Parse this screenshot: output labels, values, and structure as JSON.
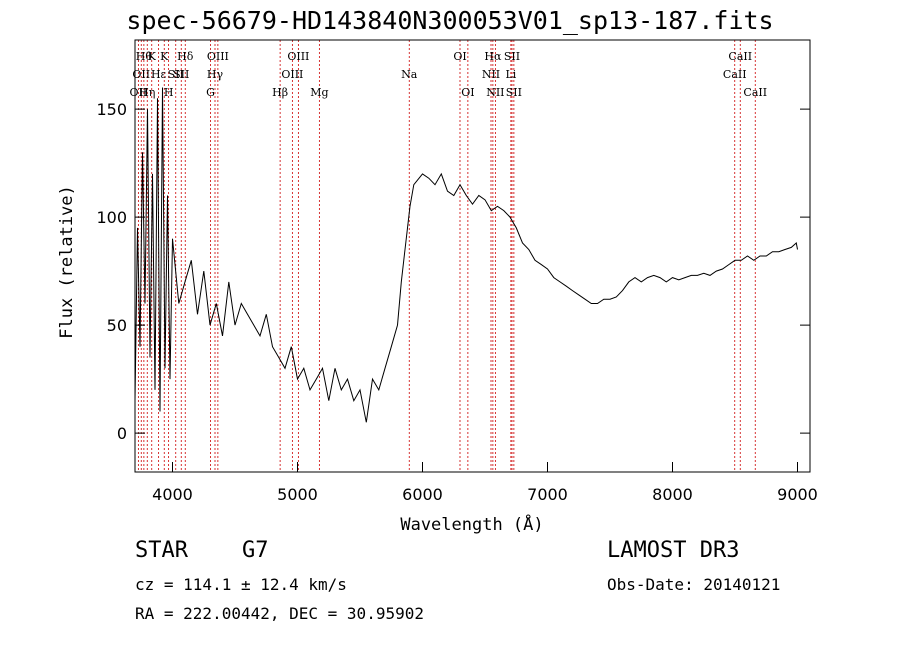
{
  "chart_data": {
    "type": "line",
    "title": "spec-56679-HD143840N300053V01_sp13-187.fits",
    "xlabel": "Wavelength (Å)",
    "ylabel": "Flux (relative)",
    "xlim": [
      3700,
      9100
    ],
    "ylim": [
      -18,
      182
    ],
    "xticks": [
      4000,
      5000,
      6000,
      7000,
      8000,
      9000
    ],
    "yticks": [
      0,
      50,
      100,
      150
    ],
    "grid": false,
    "series": [
      {
        "x": [
          3700,
          3720,
          3740,
          3760,
          3780,
          3800,
          3820,
          3840,
          3860,
          3880,
          3900,
          3920,
          3940,
          3960,
          3980,
          4000,
          4050,
          4100,
          4150,
          4200,
          4250,
          4300,
          4350,
          4400,
          4450,
          4500,
          4550,
          4600,
          4650,
          4700,
          4750,
          4800,
          4850,
          4900,
          4950,
          5000,
          5050,
          5100,
          5150,
          5200,
          5250,
          5300,
          5350,
          5400,
          5450,
          5500,
          5550,
          5600,
          5650,
          5700,
          5750,
          5800,
          5830,
          5860,
          5880,
          5900,
          5930,
          6000,
          6050,
          6100,
          6150,
          6200,
          6250,
          6300,
          6350,
          6400,
          6450,
          6500,
          6550,
          6600,
          6650,
          6700,
          6750,
          6800,
          6850,
          6900,
          6950,
          7000,
          7050,
          7100,
          7150,
          7200,
          7250,
          7300,
          7350,
          7400,
          7450,
          7500,
          7550,
          7600,
          7650,
          7700,
          7750,
          7800,
          7850,
          7900,
          7950,
          8000,
          8050,
          8100,
          8150,
          8200,
          8250,
          8300,
          8350,
          8400,
          8450,
          8500,
          8550,
          8600,
          8650,
          8700,
          8750,
          8800,
          8850,
          8900,
          8950,
          8990,
          9000
        ],
        "y": [
          15,
          95,
          40,
          130,
          60,
          150,
          35,
          120,
          20,
          155,
          10,
          160,
          30,
          110,
          25,
          90,
          60,
          70,
          80,
          55,
          75,
          50,
          60,
          45,
          70,
          50,
          60,
          55,
          50,
          45,
          55,
          40,
          35,
          30,
          40,
          25,
          30,
          20,
          25,
          30,
          15,
          30,
          20,
          25,
          15,
          20,
          5,
          25,
          20,
          30,
          40,
          50,
          70,
          85,
          95,
          105,
          115,
          120,
          118,
          115,
          120,
          112,
          110,
          115,
          110,
          106,
          110,
          108,
          103,
          105,
          103,
          100,
          95,
          88,
          85,
          80,
          78,
          76,
          72,
          70,
          68,
          66,
          64,
          62,
          60,
          60,
          62,
          62,
          63,
          66,
          70,
          72,
          70,
          72,
          73,
          72,
          70,
          72,
          71,
          72,
          73,
          73,
          74,
          73,
          75,
          76,
          78,
          80,
          80,
          82,
          80,
          82,
          82,
          84,
          84,
          85,
          86,
          88,
          85
        ]
      }
    ],
    "lines": [
      {
        "w": 3727,
        "label": "OII",
        "row": 2
      },
      {
        "w": 3750,
        "label": "OII",
        "row": 1
      },
      {
        "w": 3771,
        "label": "Hθ",
        "row": 0
      },
      {
        "w": 3798,
        "label": "Hη",
        "row": 2
      },
      {
        "w": 3834,
        "label": "K",
        "row": 0
      },
      {
        "w": 3889,
        "label": "Hε",
        "row": 1
      },
      {
        "w": 3934,
        "label": "K",
        "row": 0
      },
      {
        "w": 3969,
        "label": "H",
        "row": 2
      },
      {
        "w": 4026,
        "label": "SII",
        "row": 1
      },
      {
        "w": 4102,
        "label": "Hδ",
        "row": 0
      },
      {
        "w": 4070,
        "label": "SII",
        "row": 1
      },
      {
        "w": 4304,
        "label": "G",
        "row": 2
      },
      {
        "w": 4340,
        "label": "Hγ",
        "row": 1
      },
      {
        "w": 4363,
        "label": "OIII",
        "row": 0
      },
      {
        "w": 4861,
        "label": "Hβ",
        "row": 2
      },
      {
        "w": 4959,
        "label": "OIII",
        "row": 1
      },
      {
        "w": 5007,
        "label": "OIII",
        "row": 0
      },
      {
        "w": 5175,
        "label": "Mg",
        "row": 2
      },
      {
        "w": 5894,
        "label": "Na",
        "row": 1
      },
      {
        "w": 6300,
        "label": "OI",
        "row": 0
      },
      {
        "w": 6363,
        "label": "OI",
        "row": 2
      },
      {
        "w": 6548,
        "label": "NII",
        "row": 1
      },
      {
        "w": 6563,
        "label": "Hα",
        "row": 0
      },
      {
        "w": 6583,
        "label": "NII",
        "row": 2
      },
      {
        "w": 6707,
        "label": "Li",
        "row": 1
      },
      {
        "w": 6716,
        "label": "SII",
        "row": 0
      },
      {
        "w": 6731,
        "label": "SII",
        "row": 2
      },
      {
        "w": 8498,
        "label": "CaII",
        "row": 1
      },
      {
        "w": 8542,
        "label": "CaII",
        "row": 0
      },
      {
        "w": 8662,
        "label": "CaII",
        "row": 2
      }
    ]
  },
  "info": {
    "class": "STAR",
    "subclass": "G7",
    "cz": "cz = 114.1 ± 12.4 km/s",
    "coords": "RA = 222.00442, DEC =  30.95902",
    "survey": "LAMOST DR3",
    "obsdate": "Obs-Date: 20140121"
  }
}
